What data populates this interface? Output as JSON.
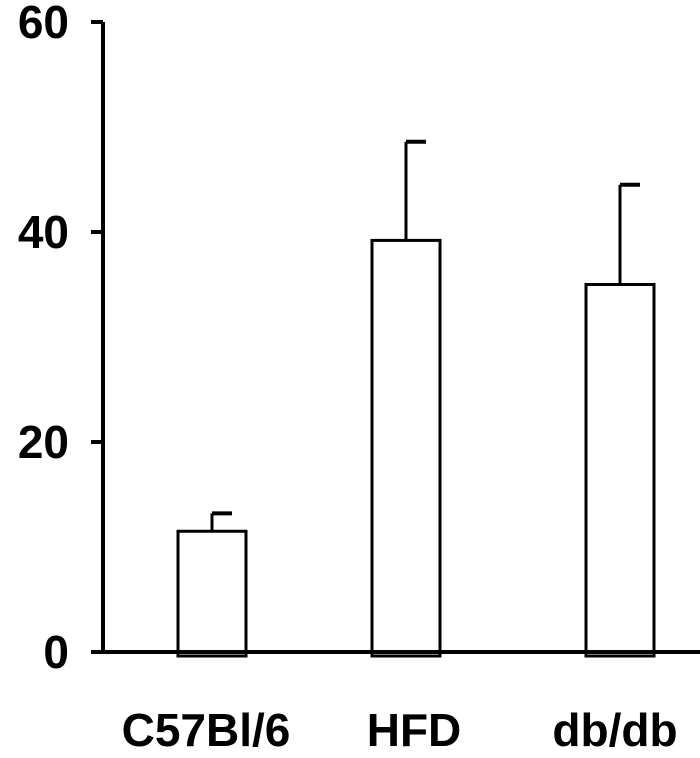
{
  "chart_data": {
    "type": "bar",
    "categories": [
      "C57Bl/6",
      "HFD",
      "db/db"
    ],
    "values": [
      11.5,
      39.2,
      35.0
    ],
    "errors": [
      1.7,
      9.4,
      9.5
    ],
    "yticks": [
      0,
      20,
      40,
      60
    ],
    "ylim": [
      0,
      60
    ],
    "title": "",
    "xlabel": "",
    "ylabel": "",
    "grid": false,
    "legend": "none",
    "bar_fill": "#ffffff",
    "bar_stroke": "#000000"
  }
}
